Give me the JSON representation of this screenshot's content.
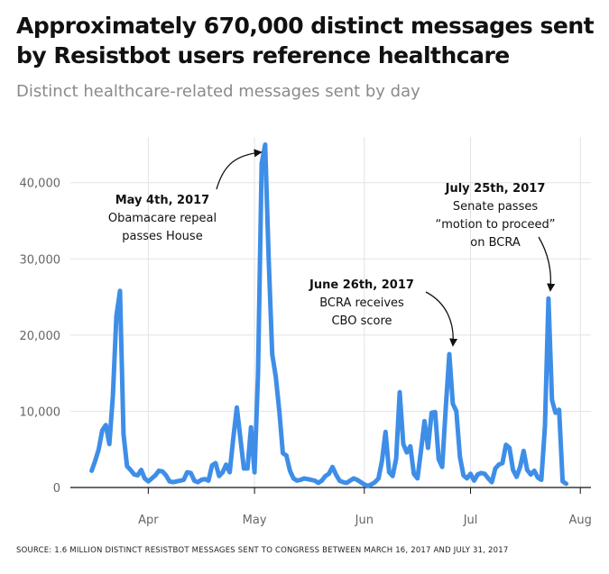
{
  "title": "Approximately 670,000 distinct messages sent by Resistbot users reference healthcare",
  "subtitle": "Distinct healthcare-related messages sent by day",
  "source": "SOURCE: 1.6 MILLION DISTINCT RESISTBOT MESSAGES SENT TO CONGRESS BETWEEN MARCH 16, 2017 AND JULY 31, 2017",
  "colors": {
    "line": "#3e8ee8",
    "grid": "#e3e3e3",
    "axis": "#111111",
    "arrow": "#111111"
  },
  "chart_data": {
    "type": "line",
    "xlabel": "",
    "ylabel": "",
    "ylim": [
      0,
      46000
    ],
    "grid": true,
    "y_ticks": [
      {
        "value": 0,
        "label": "0"
      },
      {
        "value": 10000,
        "label": "10,000"
      },
      {
        "value": 20000,
        "label": "20,000"
      },
      {
        "value": 30000,
        "label": "30,000"
      },
      {
        "value": 40000,
        "label": "40,000"
      }
    ],
    "x_ticks": [
      {
        "date": "2017-04-01",
        "label": "Apr"
      },
      {
        "date": "2017-05-01",
        "label": "May"
      },
      {
        "date": "2017-06-01",
        "label": "Jun"
      },
      {
        "date": "2017-07-01",
        "label": "Jul"
      },
      {
        "date": "2017-08-01",
        "label": "Aug"
      }
    ],
    "xlim": [
      "2017-03-10",
      "2017-08-04"
    ],
    "series": [
      {
        "values": [
          [
            "2017-03-16",
            2200
          ],
          [
            "2017-03-17",
            3500
          ],
          [
            "2017-03-18",
            5000
          ],
          [
            "2017-03-19",
            7500
          ],
          [
            "2017-03-20",
            8200
          ],
          [
            "2017-03-21",
            5700
          ],
          [
            "2017-03-22",
            12000
          ],
          [
            "2017-03-23",
            22500
          ],
          [
            "2017-03-24",
            25800
          ],
          [
            "2017-03-25",
            7000
          ],
          [
            "2017-03-26",
            2800
          ],
          [
            "2017-03-27",
            2300
          ],
          [
            "2017-03-28",
            1700
          ],
          [
            "2017-03-29",
            1600
          ],
          [
            "2017-03-30",
            2300
          ],
          [
            "2017-03-31",
            1200
          ],
          [
            "2017-04-01",
            800
          ],
          [
            "2017-04-02",
            1200
          ],
          [
            "2017-04-03",
            1600
          ],
          [
            "2017-04-04",
            2200
          ],
          [
            "2017-04-05",
            2100
          ],
          [
            "2017-04-06",
            1600
          ],
          [
            "2017-04-07",
            800
          ],
          [
            "2017-04-08",
            700
          ],
          [
            "2017-04-09",
            800
          ],
          [
            "2017-04-10",
            900
          ],
          [
            "2017-04-11",
            1000
          ],
          [
            "2017-04-12",
            2000
          ],
          [
            "2017-04-13",
            1900
          ],
          [
            "2017-04-14",
            900
          ],
          [
            "2017-04-15",
            700
          ],
          [
            "2017-04-16",
            1000
          ],
          [
            "2017-04-17",
            1100
          ],
          [
            "2017-04-18",
            900
          ],
          [
            "2017-04-19",
            2900
          ],
          [
            "2017-04-20",
            3200
          ],
          [
            "2017-04-21",
            1500
          ],
          [
            "2017-04-22",
            2000
          ],
          [
            "2017-04-23",
            3000
          ],
          [
            "2017-04-24",
            2000
          ],
          [
            "2017-04-25",
            6500
          ],
          [
            "2017-04-26",
            10500
          ],
          [
            "2017-04-27",
            6500
          ],
          [
            "2017-04-28",
            2500
          ],
          [
            "2017-04-29",
            2500
          ],
          [
            "2017-04-30",
            7900
          ],
          [
            "2017-05-01",
            2000
          ],
          [
            "2017-05-02",
            15000
          ],
          [
            "2017-05-03",
            42500
          ],
          [
            "2017-05-04",
            45000
          ],
          [
            "2017-05-05",
            30000
          ],
          [
            "2017-05-06",
            17500
          ],
          [
            "2017-05-07",
            14500
          ],
          [
            "2017-05-08",
            10000
          ],
          [
            "2017-05-09",
            4500
          ],
          [
            "2017-05-10",
            4200
          ],
          [
            "2017-05-11",
            2200
          ],
          [
            "2017-05-12",
            1200
          ],
          [
            "2017-05-13",
            900
          ],
          [
            "2017-05-14",
            1000
          ],
          [
            "2017-05-15",
            1200
          ],
          [
            "2017-05-16",
            1100
          ],
          [
            "2017-05-17",
            1000
          ],
          [
            "2017-05-18",
            900
          ],
          [
            "2017-05-19",
            600
          ],
          [
            "2017-05-20",
            900
          ],
          [
            "2017-05-21",
            1500
          ],
          [
            "2017-05-22",
            1800
          ],
          [
            "2017-05-23",
            2700
          ],
          [
            "2017-05-24",
            1700
          ],
          [
            "2017-05-25",
            900
          ],
          [
            "2017-05-26",
            700
          ],
          [
            "2017-05-27",
            600
          ],
          [
            "2017-05-28",
            900
          ],
          [
            "2017-05-29",
            1200
          ],
          [
            "2017-05-30",
            1000
          ],
          [
            "2017-05-31",
            700
          ],
          [
            "2017-06-01",
            400
          ],
          [
            "2017-06-02",
            200
          ],
          [
            "2017-06-03",
            400
          ],
          [
            "2017-06-04",
            700
          ],
          [
            "2017-06-05",
            1200
          ],
          [
            "2017-06-06",
            3500
          ],
          [
            "2017-06-07",
            7300
          ],
          [
            "2017-06-08",
            2000
          ],
          [
            "2017-06-09",
            1500
          ],
          [
            "2017-06-10",
            3800
          ],
          [
            "2017-06-11",
            12500
          ],
          [
            "2017-06-12",
            5700
          ],
          [
            "2017-06-13",
            4600
          ],
          [
            "2017-06-14",
            5400
          ],
          [
            "2017-06-15",
            1800
          ],
          [
            "2017-06-16",
            1200
          ],
          [
            "2017-06-17",
            4800
          ],
          [
            "2017-06-18",
            8700
          ],
          [
            "2017-06-19",
            5200
          ],
          [
            "2017-06-20",
            9800
          ],
          [
            "2017-06-21",
            9900
          ],
          [
            "2017-06-22",
            3700
          ],
          [
            "2017-06-23",
            2700
          ],
          [
            "2017-06-24",
            10500
          ],
          [
            "2017-06-25",
            17500
          ],
          [
            "2017-06-26",
            11000
          ],
          [
            "2017-06-27",
            10000
          ],
          [
            "2017-06-28",
            4000
          ],
          [
            "2017-06-29",
            1600
          ],
          [
            "2017-06-30",
            1200
          ],
          [
            "2017-07-01",
            1800
          ],
          [
            "2017-07-02",
            900
          ],
          [
            "2017-07-03",
            1700
          ],
          [
            "2017-07-04",
            1900
          ],
          [
            "2017-07-05",
            1800
          ],
          [
            "2017-07-06",
            1200
          ],
          [
            "2017-07-07",
            700
          ],
          [
            "2017-07-08",
            2500
          ],
          [
            "2017-07-09",
            3000
          ],
          [
            "2017-07-10",
            3200
          ],
          [
            "2017-07-11",
            5600
          ],
          [
            "2017-07-12",
            5200
          ],
          [
            "2017-07-13",
            2300
          ],
          [
            "2017-07-14",
            1400
          ],
          [
            "2017-07-15",
            2700
          ],
          [
            "2017-07-16",
            4800
          ],
          [
            "2017-07-17",
            2300
          ],
          [
            "2017-07-18",
            1700
          ],
          [
            "2017-07-19",
            2200
          ],
          [
            "2017-07-20",
            1300
          ],
          [
            "2017-07-21",
            1000
          ],
          [
            "2017-07-22",
            8000
          ],
          [
            "2017-07-23",
            24800
          ],
          [
            "2017-07-24",
            11500
          ],
          [
            "2017-07-25",
            9800
          ],
          [
            "2017-07-26",
            10200
          ],
          [
            "2017-07-27",
            800
          ],
          [
            "2017-07-28",
            500
          ]
        ]
      }
    ],
    "annotations": [
      {
        "id": "may4",
        "title": "May 4th, 2017",
        "lines": [
          "Obamacare repeal",
          "passes House"
        ]
      },
      {
        "id": "jun26",
        "title": "June 26th, 2017",
        "lines": [
          "BCRA receives",
          "CBO score"
        ]
      },
      {
        "id": "jul25",
        "title": "July 25th, 2017",
        "lines": [
          "Senate passes",
          "“motion to proceed”",
          "on BCRA"
        ]
      }
    ]
  }
}
